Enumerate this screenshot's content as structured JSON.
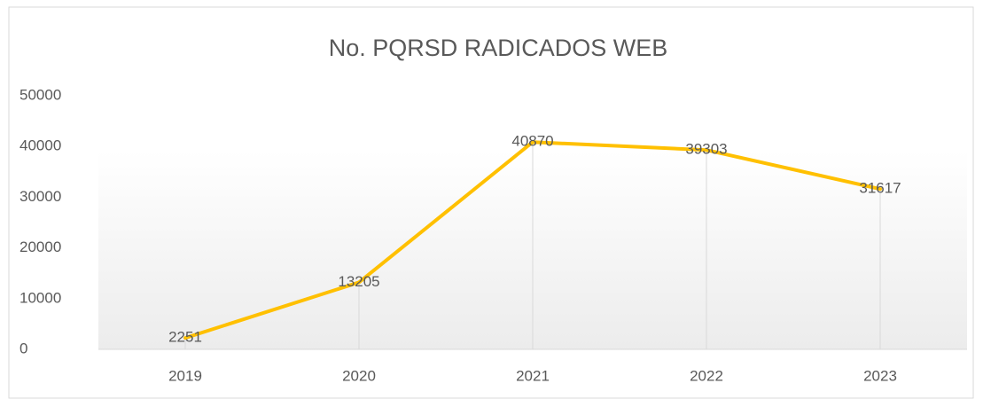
{
  "chart_data": {
    "type": "line",
    "title": "No. PQRSD RADICADOS WEB",
    "categories": [
      "2019",
      "2020",
      "2021",
      "2022",
      "2023"
    ],
    "values": [
      2251,
      13205,
      40870,
      39303,
      31617
    ],
    "color": "#FFC000",
    "ylim": [
      0,
      50000
    ],
    "yticks": [
      0,
      10000,
      20000,
      30000,
      40000,
      50000
    ],
    "drop_lines": true,
    "data_labels": true
  }
}
